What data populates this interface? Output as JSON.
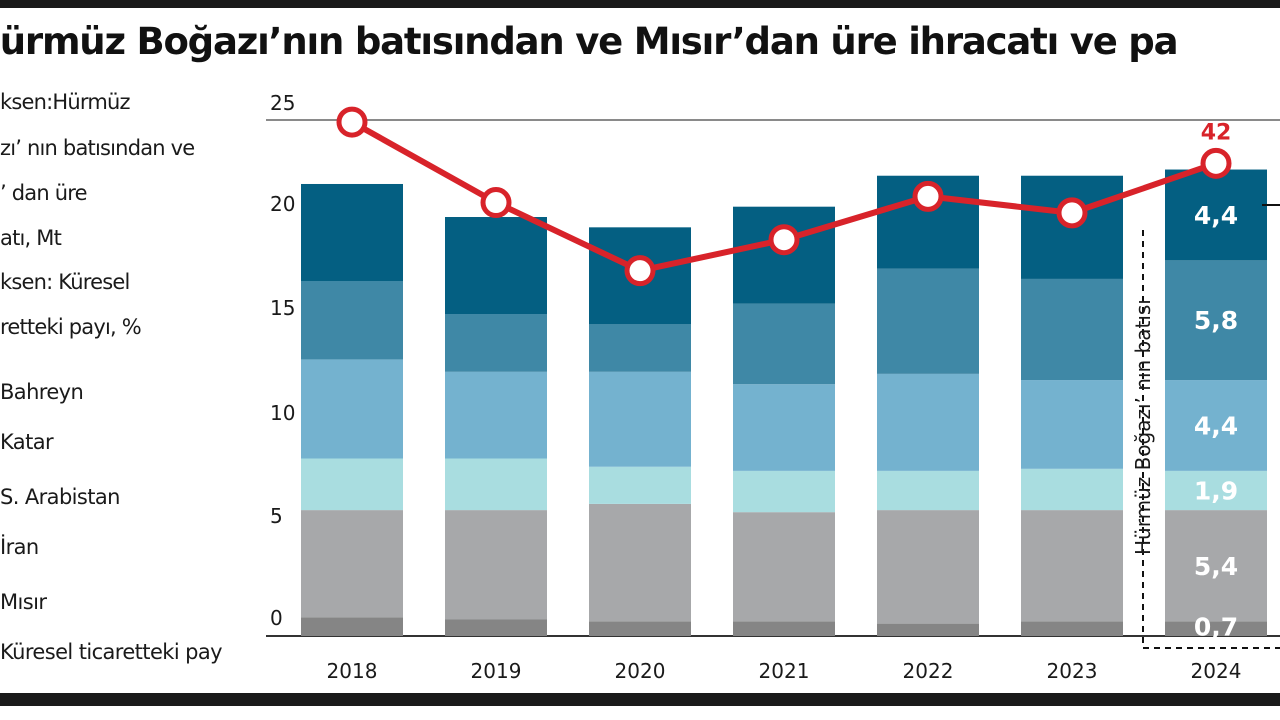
{
  "title": "Hürmüz Boğazı’nın batısından ve Mısır’dan üre ihracatı ve pa",
  "description_lines": [
    "ksen:Hürmüz",
    "zı’ nın batısından ve",
    "’ dan üre",
    "atı, Mt",
    "ksen: Küresel",
    "retteki payı, %"
  ],
  "legend": [
    "Bahreyn",
    "Katar",
    "S. Arabistan",
    "İran",
    "Mısır",
    "Küresel ticaretteki pay"
  ],
  "colors": {
    "Mısır_dark": "#858585",
    "Mısır": "#a7a8aa",
    "İran": "#a9dde0",
    "S. Arabistan": "#74b2cf",
    "Katar": "#3f88a6",
    "Bahreyn": "#045f82",
    "line": "#d8232a",
    "grid": "#8a8a8a"
  },
  "annotation": "Hürmüz Boğazı’ nın batısı",
  "chart_data": {
    "type": "bar",
    "stacked": true,
    "categories": [
      "2018",
      "2019",
      "2020",
      "2021",
      "2022",
      "2023",
      "2024"
    ],
    "ylim": [
      0,
      25
    ],
    "yticks": [
      0,
      5,
      10,
      15,
      20,
      25
    ],
    "series": [
      {
        "name": "Mısır",
        "values": [
          0.9,
          0.8,
          0.7,
          0.7,
          0.6,
          0.7,
          0.7
        ]
      },
      {
        "name": "Mısır",
        "values": [
          5.2,
          5.3,
          5.7,
          5.3,
          5.5,
          5.4,
          5.4
        ]
      },
      {
        "name": "İran",
        "values": [
          2.5,
          2.5,
          1.8,
          2.0,
          1.9,
          2.0,
          1.9
        ]
      },
      {
        "name": "S. Arabistan",
        "values": [
          4.8,
          4.2,
          4.6,
          4.2,
          4.7,
          4.3,
          4.4
        ]
      },
      {
        "name": "Katar",
        "values": [
          3.8,
          2.8,
          2.3,
          3.9,
          5.1,
          4.9,
          5.8
        ]
      },
      {
        "name": "Bahreyn",
        "values": [
          4.7,
          4.7,
          4.7,
          4.7,
          4.5,
          5.0,
          4.4
        ]
      }
    ],
    "line": {
      "name": "Küresel ticaretteki pay",
      "values": [
        24.9,
        21.0,
        17.7,
        19.2,
        21.3,
        20.5,
        22.9
      ]
    },
    "data_labels_2024": [
      "0,7",
      "5,4",
      "1,9",
      "4,4",
      "5,8",
      "4,4"
    ],
    "line_label_2024": "42"
  }
}
